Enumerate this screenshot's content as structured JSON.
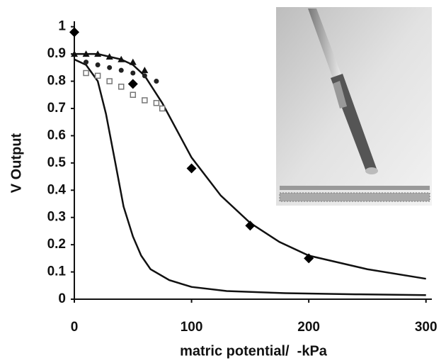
{
  "chart_data": {
    "type": "scatter",
    "x_label": "matric potential/  -kPa",
    "y_label": "V Output",
    "xlim": [
      0,
      305
    ],
    "ylim": [
      0,
      1.02
    ],
    "xticks": [
      0,
      100,
      200,
      300
    ],
    "yticks": [
      0,
      0.1,
      0.2,
      0.3,
      0.4,
      0.5,
      0.6,
      0.7,
      0.8,
      0.9,
      1
    ],
    "grid": false,
    "series": [
      {
        "marker": "line",
        "color": "#111111",
        "x": [
          0,
          10,
          20,
          27,
          35,
          42,
          50,
          57,
          65,
          81,
          100,
          130,
          180,
          240,
          300
        ],
        "values": [
          0.88,
          0.86,
          0.8,
          0.68,
          0.5,
          0.34,
          0.23,
          0.16,
          0.11,
          0.07,
          0.045,
          0.03,
          0.022,
          0.018,
          0.015
        ]
      },
      {
        "marker": "line",
        "color": "#111111",
        "x": [
          0,
          20,
          40,
          50,
          60,
          75,
          90,
          100,
          125,
          150,
          175,
          200,
          250,
          300
        ],
        "values": [
          0.9,
          0.9,
          0.88,
          0.86,
          0.82,
          0.72,
          0.6,
          0.52,
          0.38,
          0.28,
          0.21,
          0.16,
          0.11,
          0.075
        ]
      },
      {
        "marker": "triangle",
        "color": "#111111",
        "x": [
          0,
          10,
          20,
          30,
          40,
          50,
          60
        ],
        "values": [
          0.9,
          0.9,
          0.9,
          0.89,
          0.88,
          0.87,
          0.84
        ]
      },
      {
        "marker": "circle",
        "color": "#222222",
        "x": [
          10,
          20,
          30,
          40,
          50,
          60,
          70
        ],
        "values": [
          0.87,
          0.86,
          0.85,
          0.84,
          0.83,
          0.82,
          0.8
        ]
      },
      {
        "marker": "square",
        "color": "#777777",
        "x": [
          10,
          20,
          30,
          40,
          50,
          60,
          70,
          75
        ],
        "values": [
          0.83,
          0.82,
          0.8,
          0.78,
          0.75,
          0.73,
          0.72,
          0.7
        ]
      },
      {
        "marker": "diamond",
        "color": "#000000",
        "x": [
          0,
          50,
          100,
          150,
          200
        ],
        "values": [
          0.98,
          0.79,
          0.48,
          0.27,
          0.15
        ]
      }
    ]
  }
}
